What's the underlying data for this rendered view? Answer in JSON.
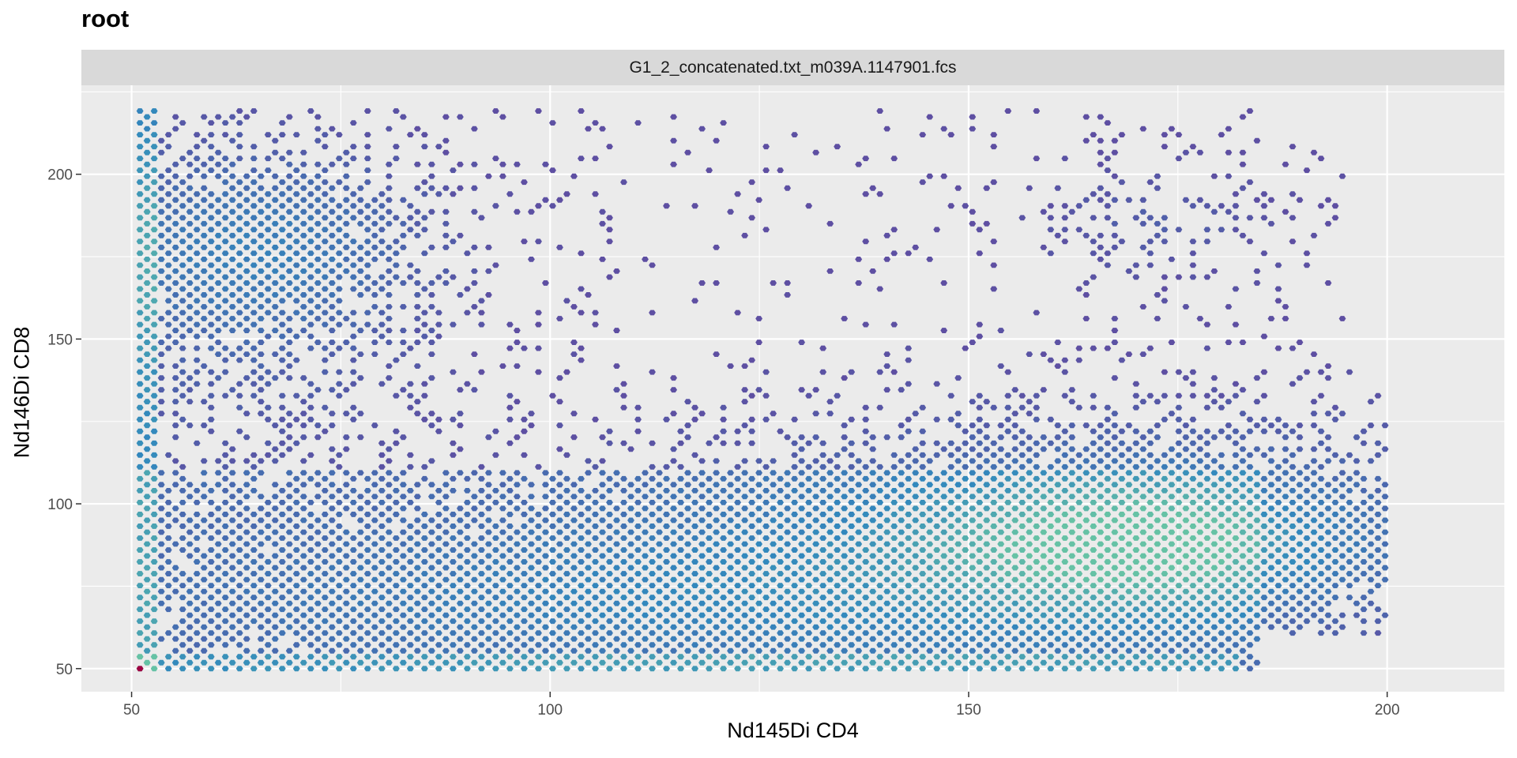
{
  "chart_data": {
    "type": "hexbin",
    "title": "root",
    "facet_label": "G1_2_concatenated.txt_m039A.1147901.fcs",
    "xlabel": "Nd145Di CD4",
    "ylabel": "Nd146Di CD8",
    "xlim": [
      44,
      214
    ],
    "ylim": [
      43,
      227
    ],
    "x_ticks": [
      50,
      100,
      150,
      200
    ],
    "y_ticks": [
      50,
      100,
      150,
      200
    ],
    "x_tick_labels": [
      "50",
      "100",
      "150",
      "200"
    ],
    "y_tick_labels": [
      "50",
      "100",
      "150",
      "200"
    ],
    "grid": true,
    "legend": "none",
    "colors": {
      "panel_background": "#ebebeb",
      "grid_major": "#ffffff",
      "low_density": "#5e4fa2",
      "mid_density": "#3288bd",
      "high_density": "#66c2a5",
      "peak_density": "#9e0142"
    },
    "populations": [
      {
        "x_center": 170,
        "y_center": 88,
        "x_spread": 16,
        "y_spread": 14,
        "relative_density": 0.55
      },
      {
        "x_center": 65,
        "y_center": 178,
        "x_spread": 14,
        "y_spread": 20,
        "relative_density": 0.35
      },
      {
        "x_center": 110,
        "y_center": 70,
        "x_spread": 40,
        "y_spread": 15,
        "relative_density": 0.25
      },
      {
        "x_center": 172,
        "y_center": 185,
        "x_spread": 10,
        "y_spread": 12,
        "relative_density": 0.15
      }
    ],
    "peak_point": {
      "x": 51,
      "y": 50
    }
  }
}
